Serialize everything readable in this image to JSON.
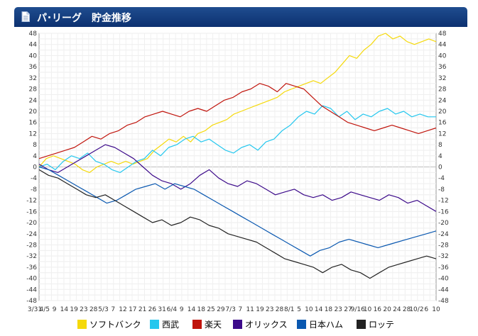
{
  "header": {
    "title": "パ･リーグ　貯金推移"
  },
  "chart_data": {
    "type": "line",
    "title": "パ･リーグ　貯金推移",
    "ylim": [
      -48,
      48
    ],
    "y_ticks": [
      48,
      44,
      40,
      36,
      32,
      28,
      24,
      20,
      16,
      12,
      8,
      4,
      0,
      -4,
      -8,
      -12,
      -16,
      -20,
      -24,
      -28,
      -32,
      -36,
      -40,
      -44,
      -48
    ],
    "x_tick_labels": [
      "3/31",
      "4/5",
      "9",
      "14",
      "19",
      "23",
      "28",
      "5/3",
      "7",
      "12",
      "17",
      "21",
      "26",
      "31",
      "6/4",
      "9",
      "14",
      "18",
      "25",
      "29",
      "7/3",
      "7",
      "11",
      "19",
      "23",
      "28",
      "8/1",
      "5",
      "10",
      "14",
      "18",
      "23",
      "27",
      "9/16",
      "10",
      "16",
      "20",
      "24",
      "28",
      "10/2",
      "6",
      "10"
    ],
    "legend_position": "bottom",
    "grid": true,
    "series": [
      {
        "name": "ソフトバンク",
        "color": "#f5d90a",
        "values": [
          0,
          3,
          4,
          3,
          2,
          1,
          -1,
          -2,
          0,
          1,
          2,
          1,
          2,
          1,
          2,
          3,
          6,
          8,
          10,
          9,
          11,
          9,
          12,
          13,
          15,
          16,
          17,
          19,
          20,
          21,
          22,
          23,
          24,
          25,
          27,
          28,
          29,
          30,
          31,
          30,
          32,
          34,
          37,
          40,
          39,
          42,
          44,
          47,
          48,
          46,
          47,
          45,
          44,
          45,
          46,
          45
        ]
      },
      {
        "name": "西武",
        "color": "#25c7ee",
        "values": [
          0,
          1,
          -1,
          2,
          4,
          3,
          5,
          2,
          1,
          -1,
          -2,
          0,
          2,
          3,
          6,
          4,
          7,
          8,
          10,
          11,
          9,
          10,
          8,
          6,
          5,
          7,
          8,
          6,
          9,
          10,
          13,
          15,
          18,
          20,
          19,
          22,
          21,
          18,
          20,
          17,
          19,
          18,
          20,
          21,
          19,
          20,
          18,
          19,
          18,
          18
        ]
      },
      {
        "name": "楽天",
        "color": "#c0140c",
        "values": [
          3,
          4,
          5,
          6,
          7,
          9,
          11,
          10,
          12,
          13,
          15,
          16,
          18,
          19,
          20,
          19,
          18,
          20,
          21,
          20,
          22,
          24,
          25,
          27,
          28,
          30,
          29,
          27,
          30,
          29,
          28,
          25,
          22,
          20,
          18,
          16,
          15,
          14,
          13,
          14,
          15,
          14,
          13,
          12,
          13,
          14
        ]
      },
      {
        "name": "オリックス",
        "color": "#3c0a8a",
        "values": [
          1,
          -1,
          -2,
          0,
          2,
          4,
          6,
          8,
          7,
          5,
          3,
          0,
          -3,
          -5,
          -6,
          -8,
          -6,
          -3,
          -1,
          -4,
          -6,
          -7,
          -5,
          -6,
          -8,
          -10,
          -9,
          -8,
          -10,
          -11,
          -10,
          -12,
          -11,
          -9,
          -10,
          -11,
          -12,
          -10,
          -11,
          -13,
          -12,
          -14,
          -16
        ]
      },
      {
        "name": "日本ハム",
        "color": "#0a58b0",
        "values": [
          0,
          -1,
          -3,
          -5,
          -7,
          -9,
          -11,
          -13,
          -12,
          -10,
          -8,
          -7,
          -6,
          -8,
          -6,
          -7,
          -8,
          -10,
          -12,
          -14,
          -16,
          -18,
          -20,
          -22,
          -24,
          -26,
          -28,
          -30,
          -32,
          -30,
          -29,
          -27,
          -26,
          -27,
          -28,
          -29,
          -28,
          -27,
          -26,
          -25,
          -24,
          -23
        ]
      },
      {
        "name": "ロッテ",
        "color": "#222222",
        "values": [
          -1,
          -3,
          -4,
          -6,
          -8,
          -10,
          -11,
          -10,
          -12,
          -14,
          -16,
          -18,
          -20,
          -19,
          -21,
          -20,
          -18,
          -19,
          -21,
          -22,
          -24,
          -25,
          -26,
          -27,
          -29,
          -31,
          -33,
          -34,
          -35,
          -36,
          -38,
          -36,
          -35,
          -37,
          -38,
          -40,
          -38,
          -36,
          -35,
          -34,
          -33,
          -32,
          -33
        ]
      }
    ]
  }
}
